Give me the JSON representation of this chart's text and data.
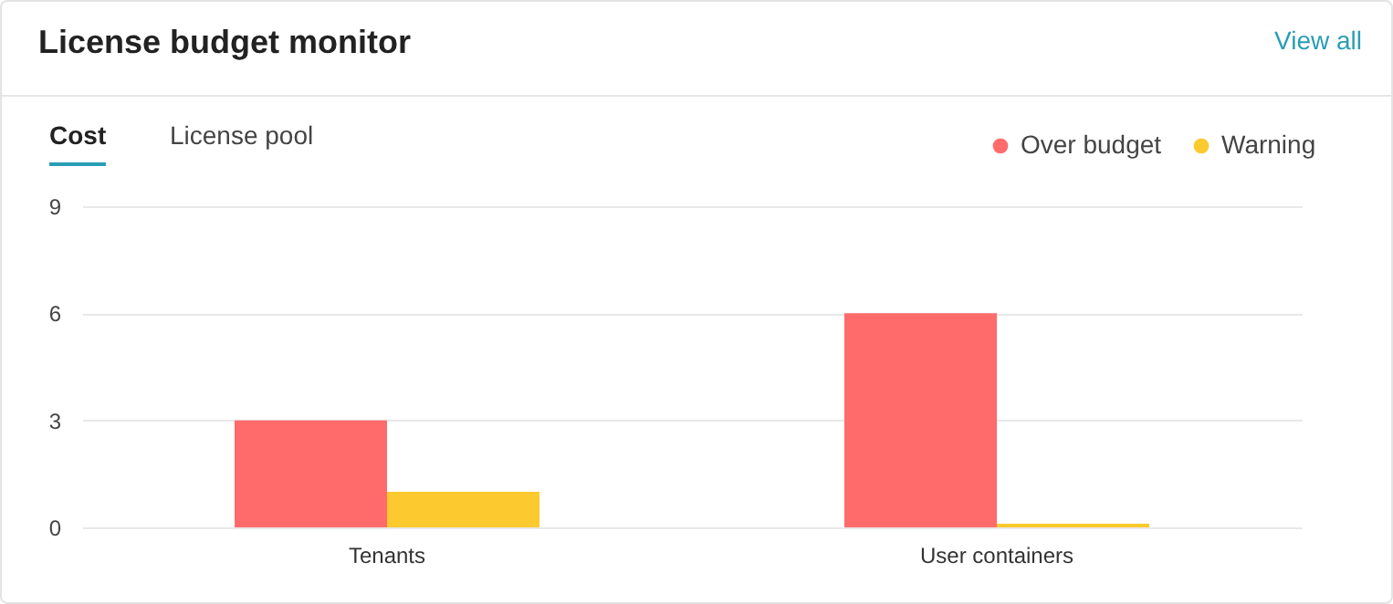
{
  "chart_data": {
    "type": "bar",
    "title": "License budget monitor",
    "annotations": [
      "View all",
      "Cost",
      "License pool"
    ],
    "categories": [
      "Tenants",
      "User containers"
    ],
    "series": [
      {
        "name": "Over budget",
        "color": "#ff6b6b",
        "values": [
          3,
          6
        ]
      },
      {
        "name": "Warning",
        "color": "#fcc92f",
        "values": [
          1,
          0.1
        ]
      }
    ],
    "ylim": [
      0,
      9
    ],
    "yticks": [
      0,
      3,
      6,
      9
    ],
    "grid": "y",
    "legend": "top right"
  }
}
